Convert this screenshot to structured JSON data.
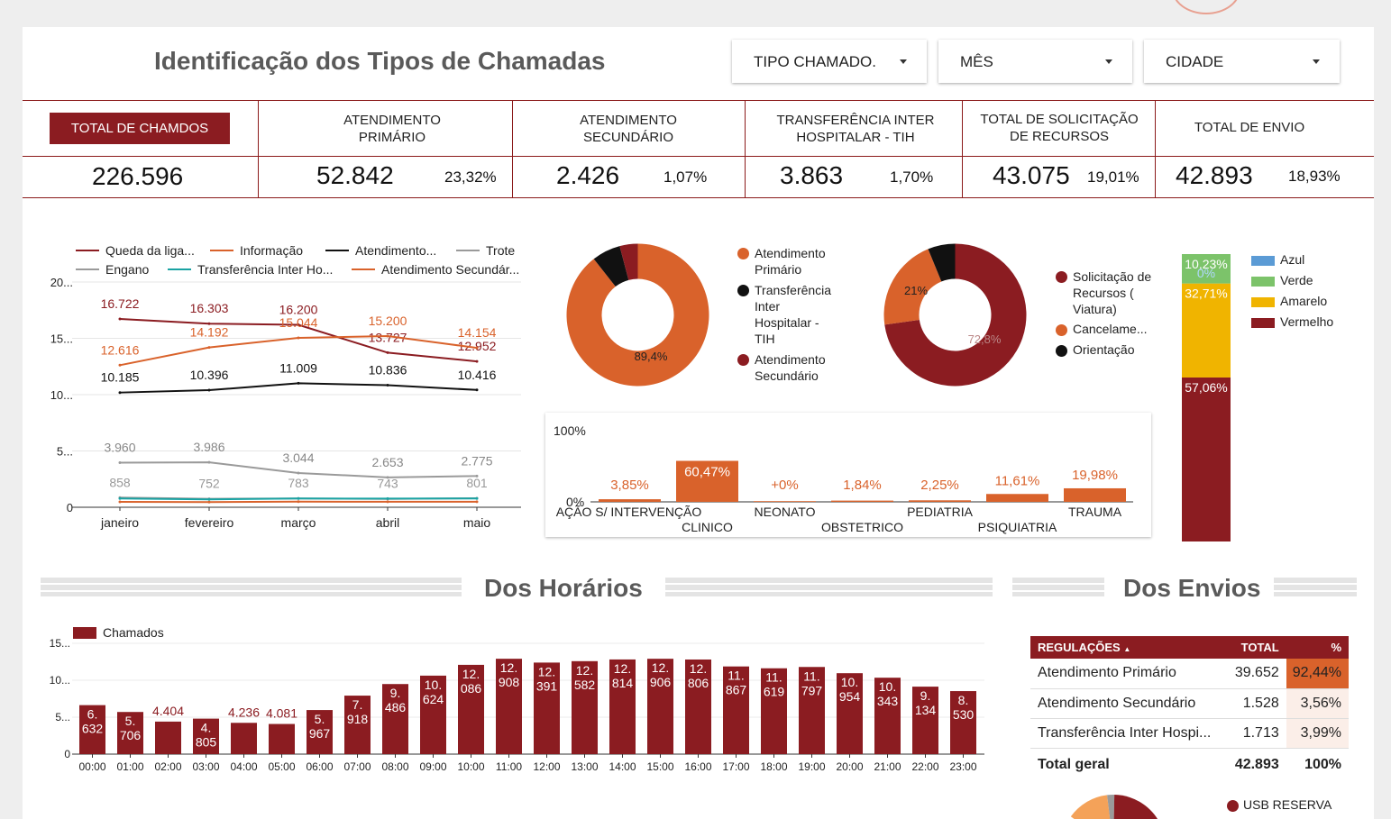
{
  "header": {
    "title": "Identificação dos Tipos de Chamadas",
    "filters": [
      {
        "label": "TIPO CHAMADO."
      },
      {
        "label": "MÊS"
      },
      {
        "label": "CIDADE"
      }
    ]
  },
  "kpis": [
    {
      "label": "TOTAL DE CHAMDOS",
      "value": "226.596",
      "pct": ""
    },
    {
      "label": "ATENDIMENTO PRIMÁRIO",
      "value": "52.842",
      "pct": "23,32%"
    },
    {
      "label": "ATENDIMENTO SECUNDÁRIO",
      "value": "2.426",
      "pct": "1,07%"
    },
    {
      "label": "TRANSFERÊNCIA INTER HOSPITALAR - TIH",
      "value": "3.863",
      "pct": "1,70%"
    },
    {
      "label": "TOTAL DE SOLICITAÇÃO DE RECURSOS",
      "value": "43.075",
      "pct": "19,01%"
    },
    {
      "label": "TOTAL DE ENVIO",
      "value": "42.893",
      "pct": "18,93%"
    }
  ],
  "sections": {
    "horarios": "Dos Horários",
    "envios": "Dos Envios"
  },
  "colors": {
    "dark_red": "#8b1c21",
    "orange": "#d9622b",
    "black": "#111111",
    "gray": "#9a9a9a",
    "teal": "#1aa3a3",
    "azul": "#5b9bd5",
    "verde": "#7cc36a",
    "amarelo": "#f0b400"
  },
  "chart_data": [
    {
      "type": "line",
      "x": [
        "janeiro",
        "fevereiro",
        "março",
        "abril",
        "maio"
      ],
      "ylim": [
        0,
        20000
      ],
      "yticks": [
        "0",
        "5...",
        "10...",
        "15...",
        "20..."
      ],
      "legend": [
        "Queda da liga...",
        "Informação",
        "Atendimento...",
        "Trote",
        "Engano",
        "Transferência Inter Ho...",
        "Atendimento Secundár..."
      ],
      "series": [
        {
          "name": "Queda da liga...",
          "color": "#8b1c21",
          "values": [
            16722,
            16303,
            16200,
            13727,
            12952
          ],
          "labels": [
            "16.722",
            "16.303",
            "16.200",
            "13.727",
            "12.952"
          ]
        },
        {
          "name": "Informação",
          "color": "#d9622b",
          "values": [
            12616,
            14192,
            15044,
            15200,
            14154
          ],
          "labels": [
            "12.616",
            "14.192",
            "15.044",
            "15.200",
            "14.154"
          ]
        },
        {
          "name": "Atendimento...",
          "color": "#111111",
          "values": [
            10185,
            10396,
            11009,
            10836,
            10416
          ],
          "labels": [
            "10.185",
            "10.396",
            "11.009",
            "10.836",
            "10.416"
          ]
        },
        {
          "name": "Trote",
          "color": "#9a9a9a",
          "values": [
            3960,
            3986,
            3044,
            2653,
            2775
          ],
          "labels": [
            "3.960",
            "3.986",
            "3.044",
            "2.653",
            "2.775"
          ]
        },
        {
          "name": "Engano",
          "color": "#9a9a9a",
          "values": [
            858,
            752,
            783,
            743,
            801
          ],
          "labels": [
            "858",
            "752",
            "783",
            "743",
            "801"
          ]
        },
        {
          "name": "Transferência Inter Ho...",
          "color": "#1aa3a3",
          "values": [
            780,
            700,
            780,
            770,
            780
          ],
          "labels": []
        },
        {
          "name": "Atendimento Secundár...",
          "color": "#d9622b",
          "values": [
            480,
            460,
            500,
            490,
            495
          ],
          "labels": []
        }
      ]
    },
    {
      "type": "pie",
      "slices": [
        {
          "label": "Atendimento Primário",
          "value": 89.4,
          "color": "#d9622b",
          "text": "89,4%"
        },
        {
          "label": "Transferência Inter Hospitalar - TIH",
          "value": 6.5,
          "color": "#111111",
          "text": ""
        },
        {
          "label": "Atendimento Secundário",
          "value": 4.1,
          "color": "#8b1c21",
          "text": ""
        }
      ]
    },
    {
      "type": "pie",
      "slices": [
        {
          "label": "Solicitação de Recursos ( Viatura)",
          "value": 72.8,
          "color": "#8b1c21",
          "text": "72,8%"
        },
        {
          "label": "Cancelame...",
          "value": 21,
          "color": "#d9622b",
          "text": "21%"
        },
        {
          "label": "Orientação",
          "value": 6.2,
          "color": "#111111",
          "text": ""
        }
      ]
    },
    {
      "type": "bar",
      "categories": [
        "AÇÃO S/ INTERVENÇÃO",
        "CLINICO",
        "NEONATO",
        "OBSTETRICO",
        "PEDIATRIA",
        "PSIQUIATRIA",
        "TRAUMA"
      ],
      "values": [
        3.85,
        60.47,
        0,
        1.84,
        2.25,
        11.61,
        19.98
      ],
      "labels": [
        "3,85%",
        "60,47%",
        "+0%",
        "1,84%",
        "2,25%",
        "11,61%",
        "19,98%"
      ],
      "yticks": [
        "0%",
        "100%"
      ],
      "ylim": [
        0,
        100
      ]
    },
    {
      "type": "bar",
      "stacked": true,
      "legend": [
        "Azul",
        "Verde",
        "Amarelo",
        "Vermelho"
      ],
      "series": [
        {
          "name": "Vermelho",
          "value": 57.06,
          "label": "57,06%",
          "color": "#8b1c21"
        },
        {
          "name": "Amarelo",
          "value": 32.71,
          "label": "32,71%",
          "color": "#f0b400"
        },
        {
          "name": "Verde",
          "value": 10.23,
          "label": "10,23%",
          "color": "#7cc36a"
        },
        {
          "name": "Azul",
          "value": 0,
          "label": "0%",
          "color": "#5b9bd5"
        }
      ]
    },
    {
      "type": "bar",
      "legend": [
        "Chamados"
      ],
      "ylim": [
        0,
        15000
      ],
      "yticks": [
        "0",
        "5...",
        "10...",
        "15..."
      ],
      "categories": [
        "00:00",
        "01:00",
        "02:00",
        "03:00",
        "04:00",
        "05:00",
        "06:00",
        "07:00",
        "08:00",
        "09:00",
        "10:00",
        "11:00",
        "12:00",
        "13:00",
        "14:00",
        "15:00",
        "16:00",
        "17:00",
        "18:00",
        "19:00",
        "20:00",
        "21:00",
        "22:00",
        "23:00"
      ],
      "values": [
        6632,
        5706,
        4404,
        4805,
        4236,
        4081,
        5967,
        7918,
        9486,
        10624,
        12086,
        12908,
        12391,
        12582,
        12814,
        12906,
        12806,
        11867,
        11619,
        11797,
        10954,
        10343,
        9134,
        8530
      ],
      "labels": [
        [
          "6.",
          "632"
        ],
        [
          "5.",
          "706"
        ],
        [
          "4.404"
        ],
        [
          "4.",
          "805"
        ],
        [
          "4.236"
        ],
        [
          "4.081"
        ],
        [
          "5.",
          "967"
        ],
        [
          "7.",
          "918"
        ],
        [
          "9.",
          "486"
        ],
        [
          "10.",
          "624"
        ],
        [
          "12.",
          "086"
        ],
        [
          "12.",
          "908"
        ],
        [
          "12.",
          "391"
        ],
        [
          "12.",
          "582"
        ],
        [
          "12.",
          "814"
        ],
        [
          "12.",
          "906"
        ],
        [
          "12.",
          "806"
        ],
        [
          "11.",
          "867"
        ],
        [
          "11.",
          "619"
        ],
        [
          "11.",
          "797"
        ],
        [
          "10.",
          "954"
        ],
        [
          "10.",
          "343"
        ],
        [
          "9.",
          "134"
        ],
        [
          "8.",
          "530"
        ]
      ]
    },
    {
      "type": "table",
      "columns": [
        "REGULAÇÕES",
        "TOTAL",
        "%"
      ],
      "rows": [
        [
          "Atendimento Primário",
          "39.652",
          "92,44%"
        ],
        [
          "Atendimento Secundário",
          "1.528",
          "3,56%"
        ],
        [
          "Transferência Inter Hospi...",
          "1.713",
          "3,99%"
        ]
      ],
      "pct_values": [
        92.44,
        3.56,
        3.99
      ],
      "footer": [
        "Total geral",
        "42.893",
        "100%"
      ]
    },
    {
      "type": "pie",
      "legend": [
        "USB RESERVA"
      ],
      "slices": [
        {
          "label": "USB RESERVA",
          "color": "#8b1c21"
        }
      ]
    }
  ]
}
